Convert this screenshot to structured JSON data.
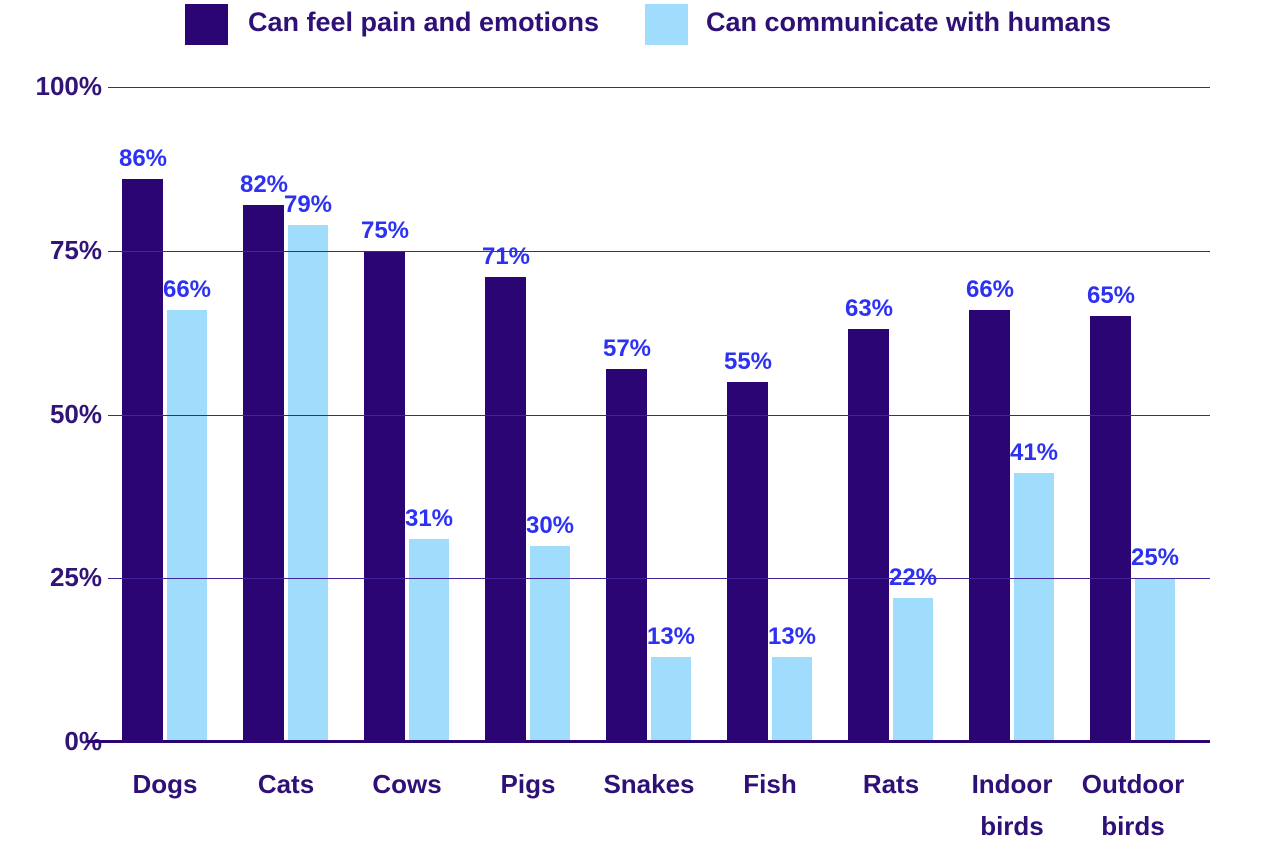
{
  "chart_data": {
    "type": "bar",
    "title": "",
    "categories": [
      "Dogs",
      "Cats",
      "Cows",
      "Pigs",
      "Snakes",
      "Fish",
      "Rats",
      "Indoor\nbirds",
      "Outdoor\nbirds"
    ],
    "series": [
      {
        "name": "Can feel pain and emotions",
        "color": "#2a0573",
        "values": [
          86,
          82,
          75,
          71,
          57,
          55,
          63,
          66,
          65
        ]
      },
      {
        "name": "Can communicate with humans",
        "color": "#a0dcfc",
        "values": [
          66,
          79,
          31,
          30,
          13,
          13,
          22,
          41,
          25
        ]
      }
    ],
    "value_label_suffix": "%",
    "xlabel": "",
    "ylabel": "",
    "ylim": [
      0,
      100
    ],
    "yticks": [
      {
        "label": "0%",
        "value": 0
      },
      {
        "label": "25%",
        "value": 25
      },
      {
        "label": "50%",
        "value": 50
      },
      {
        "label": "75%",
        "value": 75
      },
      {
        "label": "100%",
        "value": 100
      }
    ],
    "grid": true,
    "legend_position": "top",
    "colors": {
      "background": "#ffffff",
      "value_label": "#2c31f2",
      "axis_text": "#321478",
      "category_text": "#2f1076",
      "legend_text": "#2f1076",
      "gridline": "#43259b",
      "baseline": "#2a0573"
    }
  }
}
